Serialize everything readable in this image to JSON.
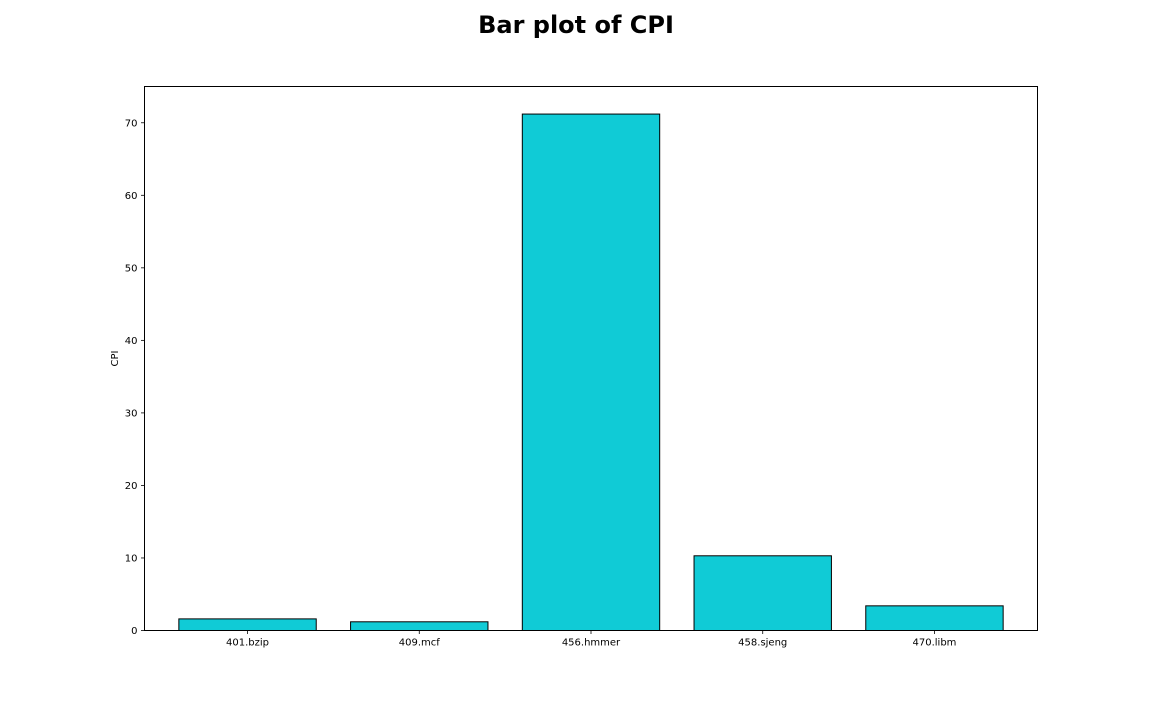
{
  "chart_data": {
    "type": "bar",
    "title": "Bar plot of CPI",
    "xlabel": "",
    "ylabel": "CPI",
    "categories": [
      "401.bzip",
      "409.mcf",
      "456.hmmer",
      "458.sjeng",
      "470.libm"
    ],
    "values": [
      1.6,
      1.2,
      71.2,
      10.3,
      3.4
    ],
    "ylim": [
      0,
      75
    ],
    "yticks": [
      0,
      10,
      20,
      30,
      40,
      50,
      60,
      70
    ],
    "bar_color": "#10cbd6",
    "edge_color": "#000000",
    "grid": false,
    "legend": "none"
  }
}
